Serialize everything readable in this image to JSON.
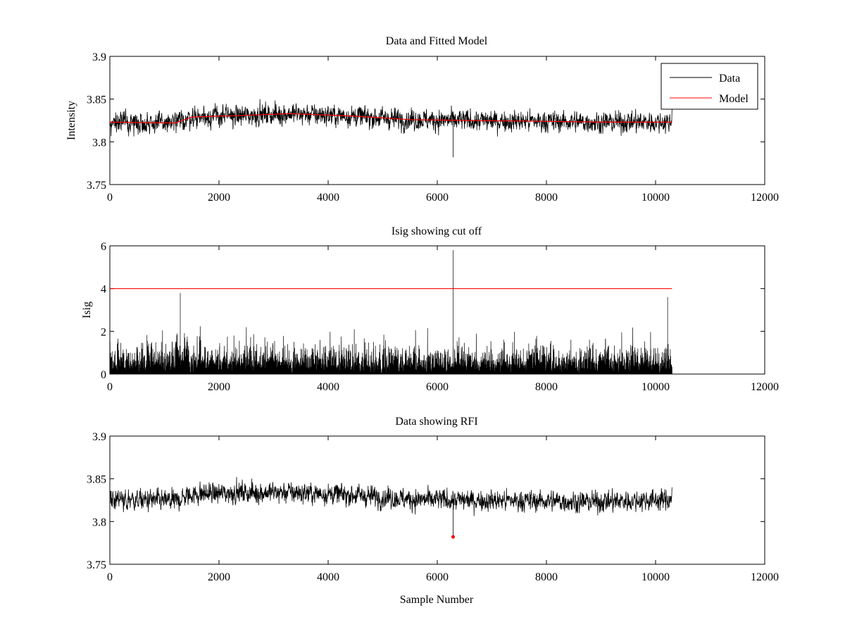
{
  "figure": {
    "background": "#ffffff",
    "data_color": "#000000",
    "accent_color": "#ff0000"
  },
  "chart_data": [
    {
      "type": "line",
      "title": "Data and Fitted Model",
      "xlabel": "",
      "ylabel": "Intensity",
      "xlim": [
        0,
        12000
      ],
      "ylim": [
        3.75,
        3.9
      ],
      "xticks": [
        "0",
        "2000",
        "4000",
        "6000",
        "8000",
        "10000",
        "12000"
      ],
      "yticks": [
        "3.75",
        "3.8",
        "3.85",
        "3.9"
      ],
      "grid": false,
      "legend": {
        "placement": "top-right",
        "entries": [
          "Data",
          "Model"
        ]
      },
      "series": [
        {
          "name": "Data",
          "color": "#000000",
          "kind": "noisy",
          "n_points": 10300,
          "x_range": [
            0,
            10300
          ],
          "baseline_x": [
            0,
            1200,
            1500,
            2500,
            3300,
            4500,
            5500,
            6500,
            8000,
            9000,
            10300
          ],
          "baseline_y": [
            3.823,
            3.822,
            3.829,
            3.831,
            3.833,
            3.83,
            3.826,
            3.825,
            3.824,
            3.823,
            3.823
          ],
          "noise_amplitude": 0.012,
          "dips": [
            {
              "x": 6290,
              "y": 3.782
            }
          ],
          "end_value": 3.838
        },
        {
          "name": "Model",
          "color": "#ff0000",
          "x": [
            0,
            1200,
            1500,
            2500,
            3300,
            4500,
            5500,
            6500,
            8000,
            9000,
            10300
          ],
          "y": [
            3.823,
            3.822,
            3.829,
            3.831,
            3.833,
            3.83,
            3.826,
            3.825,
            3.824,
            3.823,
            3.823
          ]
        }
      ]
    },
    {
      "type": "line",
      "title": "Isig showing cut off",
      "xlabel": "",
      "ylabel": "Isig",
      "xlim": [
        0,
        12000
      ],
      "ylim": [
        0,
        6
      ],
      "xticks": [
        "0",
        "2000",
        "4000",
        "6000",
        "8000",
        "10000",
        "12000"
      ],
      "yticks": [
        "0",
        "2",
        "4",
        "6"
      ],
      "grid": false,
      "series": [
        {
          "color": "#000000",
          "kind": "abs-noise",
          "n_points": 10300,
          "x_range": [
            0,
            10300
          ],
          "typical_max": 1.9,
          "peaks": [
            {
              "x": 1290,
              "y": 3.8
            },
            {
              "x": 6290,
              "y": 5.8
            },
            {
              "x": 10220,
              "y": 3.6
            }
          ]
        },
        {
          "color": "#ff0000",
          "x": [
            0,
            10300
          ],
          "y": [
            4,
            4
          ]
        }
      ]
    },
    {
      "type": "line",
      "title": "Data showing RFI",
      "xlabel": "Sample Number",
      "ylabel": "",
      "xlim": [
        0,
        12000
      ],
      "ylim": [
        3.75,
        3.9
      ],
      "xticks": [
        "0",
        "2000",
        "4000",
        "6000",
        "8000",
        "10000",
        "12000"
      ],
      "yticks": [
        "3.75",
        "3.8",
        "3.85",
        "3.9"
      ],
      "grid": false,
      "series": [
        {
          "color": "#000000",
          "kind": "noisy",
          "n_points": 10300,
          "x_range": [
            0,
            10300
          ],
          "baseline_x": [
            0,
            1200,
            1500,
            2500,
            3300,
            4500,
            5500,
            6500,
            8000,
            9000,
            10300
          ],
          "baseline_y": [
            3.826,
            3.824,
            3.832,
            3.834,
            3.834,
            3.831,
            3.826,
            3.825,
            3.824,
            3.823,
            3.826
          ],
          "noise_amplitude": 0.012,
          "dips": [
            {
              "x": 6290,
              "y": 3.782
            }
          ],
          "end_value": 3.84
        },
        {
          "color": "#ff0000",
          "kind": "markers",
          "x": [
            6290
          ],
          "y": [
            3.782
          ]
        }
      ]
    }
  ]
}
